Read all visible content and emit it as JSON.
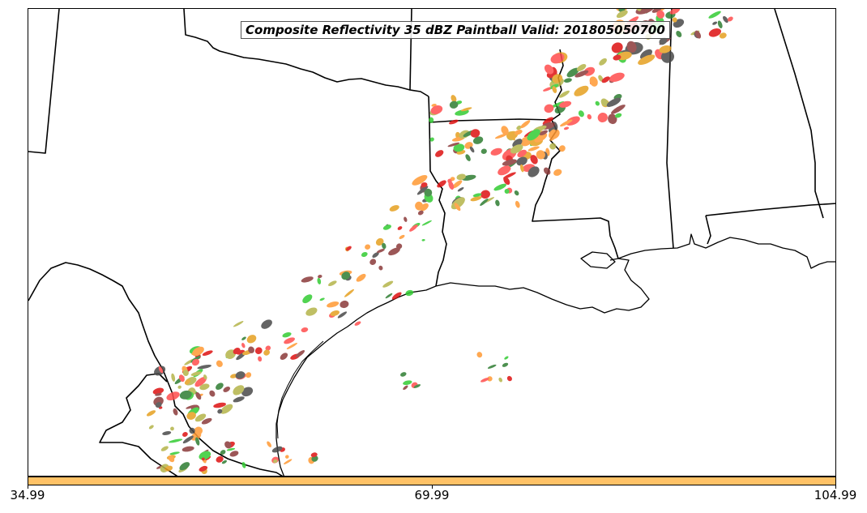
{
  "title": "Composite Reflectivity 35 dBZ Paintball Valid: 201805050700",
  "colorbar": {
    "color": "#ffc266",
    "ticks": [
      "34.99",
      "69.99",
      "104.99"
    ]
  },
  "paintball_colors": [
    "#ff4d4d",
    "#ff9933",
    "#33cc33",
    "#8b3a3a",
    "#b5b44a",
    "#2e7d32",
    "#e6a020",
    "#4a4a4a",
    "#dd1111"
  ]
}
